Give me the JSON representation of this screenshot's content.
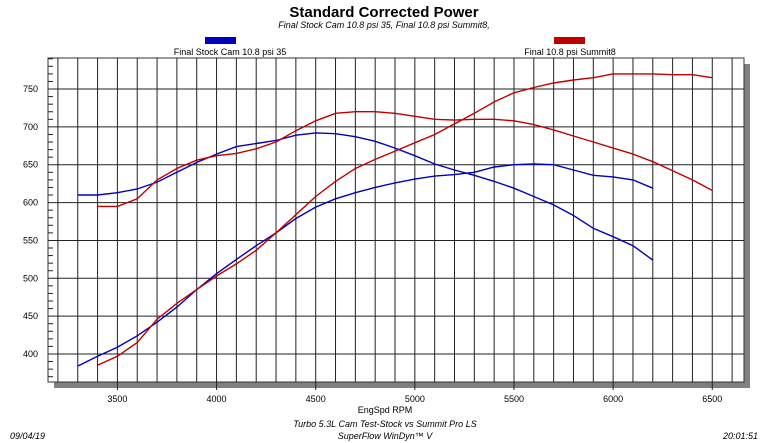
{
  "chart_data": {
    "type": "line",
    "title": "Standard Corrected Power",
    "subtitle": "Final Stock Cam 10.8 psi 35, Final 10.8 psi Summit8,",
    "xlabel": "EngSpd RPM",
    "ylabel": "",
    "xlim": [
      3150,
      6660
    ],
    "ylim": [
      363,
      791
    ],
    "x_ticks": [
      3500,
      4000,
      4500,
      5000,
      5500,
      6000,
      6500
    ],
    "y_ticks": [
      400,
      450,
      500,
      550,
      600,
      650,
      700,
      750
    ],
    "grid": true,
    "legend": "top",
    "series": [
      {
        "name": "Final Stock Cam 10.8 psi 35",
        "color": "#0000c0",
        "curves": [
          {
            "x": [
              3300,
              3400,
              3500,
              3600,
              3700,
              3800,
              3900,
              4000,
              4100,
              4200,
              4300,
              4400,
              4500,
              4600,
              4700,
              4800,
              4900,
              5000,
              5100,
              5200,
              5300,
              5400,
              5500,
              5600,
              5700,
              5800,
              5900,
              6000,
              6100,
              6200
            ],
            "y": [
              610,
              610,
              613,
              618,
              627,
              640,
              653,
              664,
              674,
              678,
              682,
              689,
              692,
              691,
              687,
              681,
              672,
              662,
              651,
              643,
              636,
              628,
              619,
              608,
              597,
              583,
              566,
              555,
              543,
              524
            ]
          },
          {
            "x": [
              3300,
              3400,
              3500,
              3600,
              3700,
              3800,
              3900,
              4000,
              4100,
              4200,
              4300,
              4400,
              4500,
              4600,
              4700,
              4800,
              4900,
              5000,
              5100,
              5200,
              5300,
              5400,
              5500,
              5600,
              5700,
              5800,
              5900,
              6000,
              6100,
              6200
            ],
            "y": [
              384,
              397,
              409,
              424,
              442,
              462,
              485,
              506,
              525,
              543,
              560,
              579,
              594,
              605,
              613,
              620,
              626,
              631,
              635,
              637,
              640,
              647,
              650,
              651,
              650,
              643,
              636,
              634,
              630,
              619
            ]
          }
        ]
      },
      {
        "name": "Final 10.8 psi Summit8",
        "color": "#c00000",
        "curves": [
          {
            "x": [
              3400,
              3500,
              3600,
              3700,
              3800,
              3900,
              4000,
              4100,
              4200,
              4300,
              4400,
              4500,
              4600,
              4700,
              4800,
              4900,
              5000,
              5100,
              5200,
              5300,
              5400,
              5500,
              5600,
              5700,
              5800,
              5900,
              6000,
              6100,
              6200,
              6300,
              6400,
              6500
            ],
            "y": [
              595,
              595,
              605,
              630,
              645,
              656,
              662,
              665,
              671,
              680,
              695,
              708,
              718,
              720,
              720,
              718,
              714,
              710,
              709,
              710,
              710,
              708,
              703,
              696,
              688,
              680,
              672,
              664,
              654,
              642,
              630,
              616
            ]
          },
          {
            "x": [
              3400,
              3500,
              3600,
              3700,
              3800,
              3900,
              4000,
              4100,
              4200,
              4300,
              4400,
              4500,
              4600,
              4700,
              4800,
              4900,
              5000,
              5100,
              5200,
              5300,
              5400,
              5500,
              5600,
              5700,
              5800,
              5900,
              6000,
              6100,
              6200,
              6300,
              6400,
              6500
            ],
            "y": [
              385,
              397,
              415,
              446,
              467,
              485,
              503,
              519,
              537,
              560,
              584,
              608,
              628,
              645,
              657,
              668,
              679,
              690,
              704,
              718,
              733,
              745,
              752,
              758,
              762,
              765,
              770,
              770,
              770,
              769,
              769,
              765
            ]
          }
        ]
      }
    ]
  },
  "footer": {
    "line1": "Turbo 5.3L Cam Test-Stock vs Summit Pro LS",
    "line2": "SuperFlow WinDyn™ V",
    "date": "09/04/19",
    "time": "20:01:51"
  }
}
